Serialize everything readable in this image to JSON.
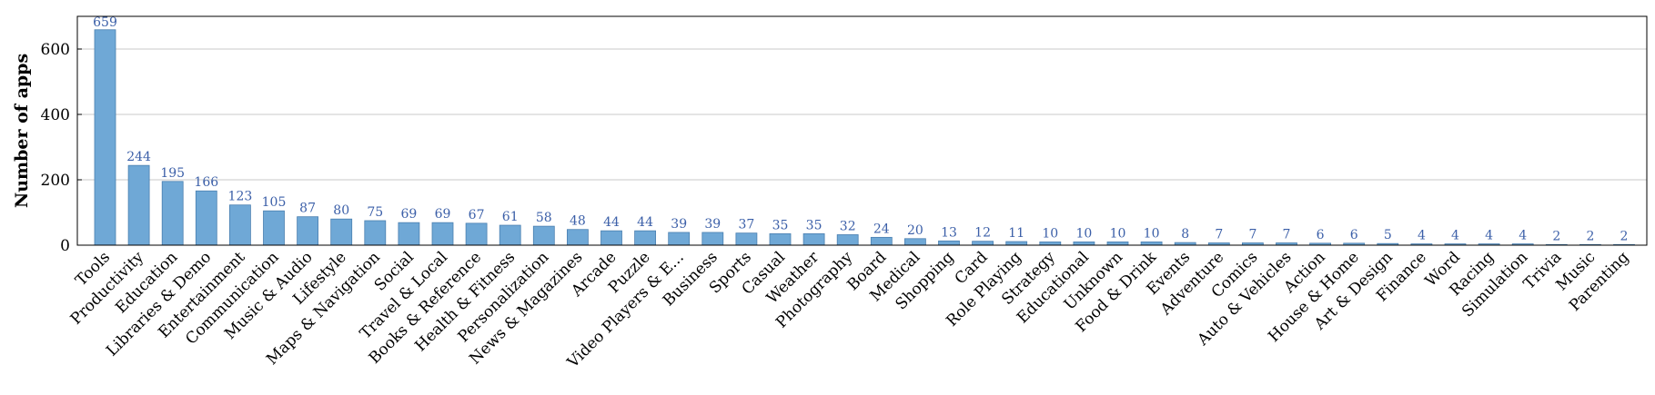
{
  "chart_data": {
    "type": "bar",
    "title": "",
    "xlabel": "",
    "ylabel": "Number of apps",
    "ylim": [
      0,
      700
    ],
    "yticks": [
      0,
      200,
      400,
      600
    ],
    "grid": true,
    "bar_color": "#6fa8d6",
    "bar_edge_color": "#4a7fb0",
    "value_label_color": "#3b5fa8",
    "categories": [
      "Tools",
      "Productivity",
      "Education",
      "Libraries & Demo",
      "Entertainment",
      "Communication",
      "Music & Audio",
      "Lifestyle",
      "Maps & Navigation",
      "Social",
      "Travel & Local",
      "Books & Reference",
      "Health & Fitness",
      "Personalization",
      "News & Magazines",
      "Arcade",
      "Puzzle",
      "Video Players & E...",
      "Business",
      "Sports",
      "Casual",
      "Weather",
      "Photography",
      "Board",
      "Medical",
      "Shopping",
      "Card",
      "Role Playing",
      "Strategy",
      "Educational",
      "Unknown",
      "Food & Drink",
      "Events",
      "Adventure",
      "Comics",
      "Auto & Vehicles",
      "Action",
      "House & Home",
      "Art & Design",
      "Finance",
      "Word",
      "Racing",
      "Simulation",
      "Trivia",
      "Music",
      "Parenting"
    ],
    "values": [
      659,
      244,
      195,
      166,
      123,
      105,
      87,
      80,
      75,
      69,
      69,
      67,
      61,
      58,
      48,
      44,
      44,
      39,
      39,
      37,
      35,
      35,
      32,
      24,
      20,
      13,
      12,
      11,
      10,
      10,
      10,
      10,
      8,
      7,
      7,
      7,
      6,
      6,
      5,
      4,
      4,
      4,
      4,
      2,
      2,
      2
    ]
  }
}
